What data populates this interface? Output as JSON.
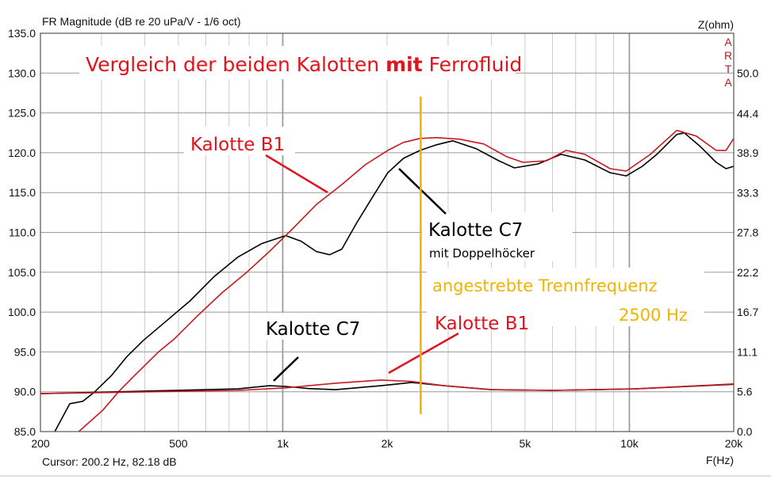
{
  "chart_data": {
    "type": "line",
    "title": "FR Magnitude (dB re 20 uPa/V - 1/6 oct)",
    "xlabel": "F(Hz)",
    "ylabel_right": "Z(ohm)",
    "x_scale": "log",
    "xlim": [
      200,
      20000
    ],
    "ylim": [
      85,
      135
    ],
    "ylim_right": [
      0,
      55.6
    ],
    "grid": true,
    "x_ticks": [
      {
        "v": 200,
        "label": "200"
      },
      {
        "v": 500,
        "label": "500"
      },
      {
        "v": 1000,
        "label": "1k"
      },
      {
        "v": 2000,
        "label": "2k"
      },
      {
        "v": 5000,
        "label": "5k"
      },
      {
        "v": 10000,
        "label": "10k"
      },
      {
        "v": 20000,
        "label": "20k"
      }
    ],
    "y_ticks": [
      "85.0",
      "90.0",
      "95.0",
      "100.0",
      "105.0",
      "110.0",
      "115.0",
      "120.0",
      "125.0",
      "130.0",
      "135.0"
    ],
    "y_ticks_right": [
      "0.0",
      "5.6",
      "11.1",
      "16.7",
      "22.2",
      "27.8",
      "33.3",
      "38.9",
      "44.4",
      "50.0"
    ],
    "series": [
      {
        "color": "#000000",
        "axis": "left",
        "x": [
          220,
          243,
          265,
          287,
          320,
          355,
          395,
          462,
          540,
          632,
          742,
          870,
          1020,
          1130,
          1250,
          1365,
          1480,
          1640,
          1820,
          2010,
          2230,
          2490,
          2780,
          3090,
          3620,
          4200,
          4660,
          5450,
          6350,
          7440,
          8800,
          9800,
          10900,
          12000,
          13700,
          14400,
          16000,
          17800,
          19000,
          20000
        ],
        "y": [
          85,
          88.5,
          88.8,
          90,
          92,
          94.4,
          96.4,
          98.9,
          101.4,
          104.4,
          106.9,
          108.6,
          109.6,
          108.9,
          107.6,
          107.2,
          107.9,
          111.3,
          114.5,
          117.5,
          119.3,
          120.3,
          121,
          121.5,
          120.5,
          119,
          118.1,
          118.6,
          119.8,
          119.1,
          117.5,
          117.1,
          118.3,
          119.8,
          122.3,
          122.5,
          120.8,
          118.8,
          118,
          118.3
        ]
      },
      {
        "color": "#c8191e",
        "axis": "left",
        "x": [
          258,
          303,
          336,
          373,
          438,
          486,
          570,
          667,
          783,
          915,
          1070,
          1250,
          1480,
          1730,
          2010,
          2230,
          2490,
          2780,
          3240,
          3800,
          4430,
          4930,
          5770,
          6570,
          7440,
          8800,
          9800,
          11500,
          13700,
          15600,
          17800,
          19000,
          20000
        ],
        "y": [
          85,
          87.7,
          90,
          92,
          95,
          96.6,
          99.6,
          102.4,
          104.9,
          107.6,
          110.5,
          113.5,
          116,
          118.5,
          120.3,
          121.3,
          121.8,
          121.9,
          121.7,
          121.1,
          119.5,
          118.8,
          119,
          120.3,
          119.8,
          118,
          117.7,
          119.8,
          122.8,
          122.1,
          120.3,
          120.3,
          121.8
        ]
      },
      {
        "color": "#000000",
        "axis": "right",
        "x": [
          200,
          742,
          915,
          1020,
          1190,
          1420,
          1920,
          2350,
          2920,
          4000,
          6020,
          10400,
          20000
        ],
        "y": [
          5.3,
          5.96,
          6.4,
          6.3,
          6.0,
          5.85,
          6.4,
          6.85,
          6.4,
          5.85,
          5.75,
          5.96,
          6.6
        ]
      },
      {
        "color": "#c8191e",
        "axis": "right",
        "x": [
          200,
          742,
          1020,
          1420,
          1920,
          2350,
          2920,
          4000,
          6020,
          10400,
          20000
        ],
        "y": [
          5.3,
          5.75,
          6.1,
          6.75,
          7.2,
          7.0,
          6.4,
          5.85,
          5.75,
          5.96,
          6.65
        ]
      }
    ],
    "marker_line": {
      "x": 2500,
      "color": "#f0b400"
    }
  },
  "annotations": {
    "headline_pre": "Vergleich der beiden Kalotten ",
    "headline_bold": "mit",
    "headline_post": " Ferrofluid",
    "label_b1_spl": "Kalotte B1",
    "label_c7_spl": "Kalotte C7",
    "label_c7_sub": "mit Doppelhöcker",
    "label_crossover": "angestrebte Trennfrequenz",
    "label_crossover_value": "2500 Hz",
    "label_c7_z": "Kalotte C7",
    "label_b1_z": "Kalotte B1"
  },
  "logo": "ARTA",
  "status": {
    "cursor": "Cursor: 200.2 Hz, 82.18 dB"
  },
  "colors": {
    "red": "#c8191e",
    "black": "#000000",
    "yellow": "#f0b400",
    "logo": "#b01c1c"
  }
}
